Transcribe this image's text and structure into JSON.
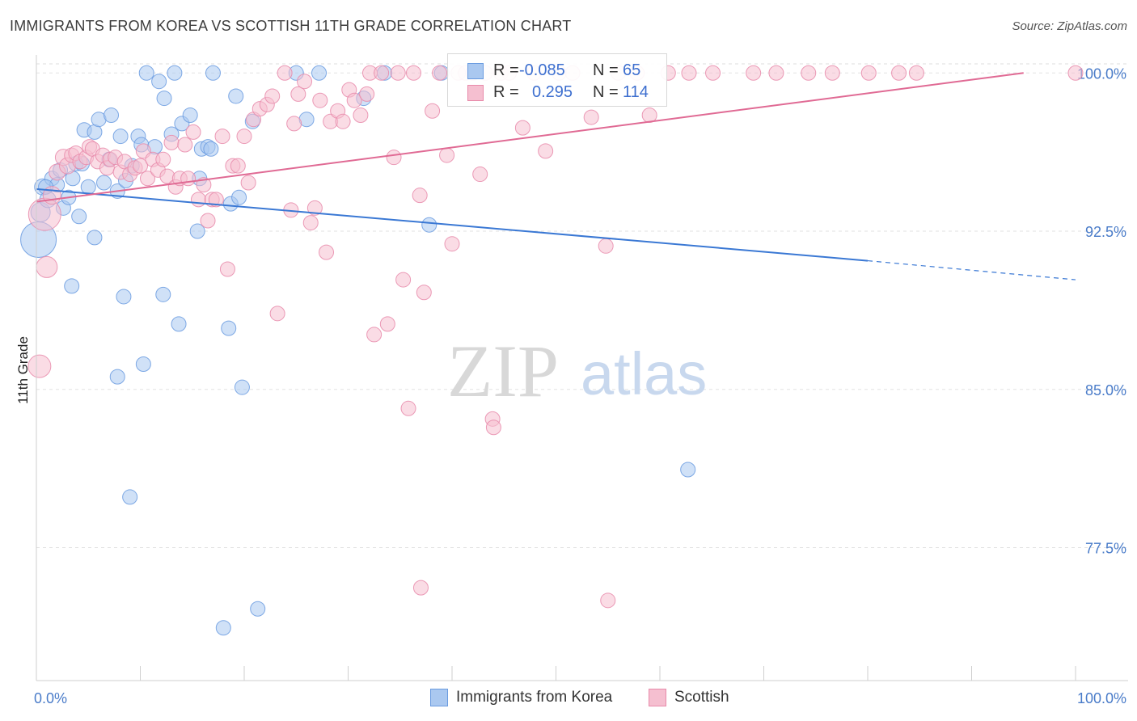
{
  "header": {
    "title": "IMMIGRANTS FROM KOREA VS SCOTTISH 11TH GRADE CORRELATION CHART",
    "source": "Source: ZipAtlas.com"
  },
  "watermark": {
    "zip": "ZIP",
    "atlas": "atlas"
  },
  "legend_top": {
    "rows": [
      {
        "r_label": "R =",
        "r_value": "-0.085",
        "n_label": "N =",
        "n_value": "65"
      },
      {
        "r_label": "R =",
        "r_value": "0.295",
        "n_label": "N =",
        "n_value": "114"
      }
    ]
  },
  "legend_bottom": [
    {
      "label": "Immigrants from Korea"
    },
    {
      "label": "Scottish"
    }
  ],
  "chart_data": {
    "type": "scatter",
    "title": "IMMIGRANTS FROM KOREA VS SCOTTISH 11TH GRADE CORRELATION CHART",
    "ylabel": "11th Grade",
    "xlabel": "",
    "xlim": [
      0,
      100
    ],
    "ylim": [
      71.2,
      100.7
    ],
    "x_tick_labels": [
      "0.0%",
      "100.0%"
    ],
    "y_ticks": [
      77.5,
      85.0,
      92.5,
      100.0
    ],
    "y_tick_labels": [
      "77.5%",
      "85.0%",
      "92.5%",
      "100.0%"
    ],
    "grid": true,
    "legend_placement": "top-center",
    "series": [
      {
        "name": "Immigrants from Korea",
        "color": "#6a9be0",
        "fill": "#aac8f0",
        "R": -0.085,
        "N": 65,
        "trend": {
          "x0": 0,
          "y0": 94.5,
          "x1": 80,
          "y1": 91.1,
          "dash_to_x": 100,
          "dash_to_y": 90.2
        },
        "points": [
          [
            0.2,
            92.1,
            22
          ],
          [
            0.4,
            93.4,
            12
          ],
          [
            0.6,
            94.6,
            10
          ],
          [
            1.1,
            94.0,
            10
          ],
          [
            1.5,
            95.0,
            9
          ],
          [
            2.0,
            94.7,
            9
          ],
          [
            2.3,
            95.4,
            9
          ],
          [
            2.6,
            93.6,
            9
          ],
          [
            3.1,
            94.1,
            9
          ],
          [
            3.5,
            95.0,
            9
          ],
          [
            3.8,
            95.7,
            9
          ],
          [
            4.1,
            93.2,
            9
          ],
          [
            4.4,
            95.7,
            9
          ],
          [
            4.6,
            97.3,
            9
          ],
          [
            5.0,
            94.6,
            9
          ],
          [
            5.6,
            97.2,
            9
          ],
          [
            6.0,
            97.8,
            9
          ],
          [
            6.5,
            94.8,
            9
          ],
          [
            7.0,
            95.9,
            9
          ],
          [
            7.2,
            98.0,
            9
          ],
          [
            7.8,
            94.4,
            9
          ],
          [
            8.1,
            97.0,
            9
          ],
          [
            8.6,
            94.9,
            9
          ],
          [
            9.2,
            95.6,
            9
          ],
          [
            9.8,
            97.0,
            9
          ],
          [
            10.1,
            96.6,
            9
          ],
          [
            10.6,
            100.0,
            9
          ],
          [
            11.4,
            96.5,
            9
          ],
          [
            11.8,
            99.6,
            9
          ],
          [
            12.3,
            98.8,
            9
          ],
          [
            13.0,
            97.1,
            9
          ],
          [
            13.3,
            100.0,
            9
          ],
          [
            14.0,
            97.6,
            9
          ],
          [
            14.8,
            98.0,
            9
          ],
          [
            15.5,
            92.5,
            9
          ],
          [
            15.7,
            95.0,
            9
          ],
          [
            15.9,
            96.4,
            9
          ],
          [
            16.5,
            96.5,
            9
          ],
          [
            16.8,
            96.4,
            9
          ],
          [
            17.0,
            100.0,
            9
          ],
          [
            18.7,
            93.8,
            9
          ],
          [
            19.2,
            98.9,
            9
          ],
          [
            19.5,
            94.1,
            9
          ],
          [
            20.8,
            97.7,
            9
          ],
          [
            25.0,
            100.0,
            9
          ],
          [
            26.0,
            97.8,
            9
          ],
          [
            27.2,
            100.0,
            9
          ],
          [
            31.5,
            98.8,
            9
          ],
          [
            33.5,
            100.0,
            9
          ],
          [
            37.8,
            92.8,
            9
          ],
          [
            39.0,
            100.0,
            9
          ],
          [
            3.4,
            89.9,
            9
          ],
          [
            5.6,
            92.2,
            9
          ],
          [
            7.8,
            85.6,
            9
          ],
          [
            8.4,
            89.4,
            9
          ],
          [
            9.0,
            79.9,
            9
          ],
          [
            10.3,
            86.2,
            9
          ],
          [
            12.2,
            89.5,
            9
          ],
          [
            13.7,
            88.1,
            9
          ],
          [
            18.5,
            87.9,
            9
          ],
          [
            19.8,
            85.1,
            9
          ],
          [
            18.0,
            73.7,
            9
          ],
          [
            21.3,
            74.6,
            9
          ],
          [
            62.7,
            81.2,
            9
          ],
          [
            0.9,
            94.6,
            9
          ]
        ]
      },
      {
        "name": "Scottish",
        "color": "#e88aaa",
        "fill": "#f5bfd0",
        "R": 0.295,
        "N": 114,
        "trend": {
          "x0": 0,
          "y0": 93.9,
          "x1": 95,
          "y1": 100.0
        },
        "points": [
          [
            0.3,
            86.1,
            14
          ],
          [
            0.8,
            93.3,
            20
          ],
          [
            1.0,
            90.8,
            13
          ],
          [
            1.5,
            94.2,
            11
          ],
          [
            2.0,
            95.3,
            10
          ],
          [
            2.6,
            96.0,
            10
          ],
          [
            3.0,
            95.6,
            10
          ],
          [
            3.4,
            96.1,
            9
          ],
          [
            3.8,
            96.2,
            9
          ],
          [
            4.2,
            95.8,
            9
          ],
          [
            4.8,
            96.0,
            9
          ],
          [
            5.1,
            96.5,
            9
          ],
          [
            5.4,
            96.4,
            9
          ],
          [
            5.9,
            95.8,
            9
          ],
          [
            6.4,
            96.1,
            9
          ],
          [
            6.8,
            95.5,
            9
          ],
          [
            7.1,
            95.9,
            9
          ],
          [
            7.6,
            96.0,
            9
          ],
          [
            8.1,
            95.3,
            9
          ],
          [
            8.5,
            95.8,
            9
          ],
          [
            9.0,
            95.2,
            9
          ],
          [
            9.5,
            95.5,
            9
          ],
          [
            10.0,
            95.6,
            9
          ],
          [
            10.3,
            96.3,
            9
          ],
          [
            10.7,
            95.0,
            9
          ],
          [
            11.2,
            95.9,
            9
          ],
          [
            11.7,
            95.4,
            9
          ],
          [
            12.2,
            95.9,
            9
          ],
          [
            12.6,
            95.1,
            9
          ],
          [
            13.0,
            96.7,
            9
          ],
          [
            13.4,
            94.6,
            9
          ],
          [
            13.8,
            95.0,
            9
          ],
          [
            14.3,
            96.6,
            9
          ],
          [
            14.6,
            95.0,
            9
          ],
          [
            15.1,
            97.2,
            9
          ],
          [
            15.6,
            94.0,
            9
          ],
          [
            16.1,
            94.7,
            9
          ],
          [
            16.5,
            93.0,
            9
          ],
          [
            16.9,
            94.0,
            9
          ],
          [
            17.3,
            94.0,
            9
          ],
          [
            17.9,
            97.0,
            9
          ],
          [
            18.4,
            90.7,
            9
          ],
          [
            18.9,
            95.6,
            9
          ],
          [
            19.4,
            95.6,
            9
          ],
          [
            20.0,
            97.0,
            9
          ],
          [
            20.4,
            94.8,
            9
          ],
          [
            20.9,
            97.8,
            9
          ],
          [
            21.5,
            98.3,
            9
          ],
          [
            22.2,
            98.5,
            9
          ],
          [
            22.7,
            98.9,
            9
          ],
          [
            23.2,
            88.6,
            9
          ],
          [
            23.9,
            100.0,
            9
          ],
          [
            24.5,
            93.5,
            9
          ],
          [
            24.8,
            97.6,
            9
          ],
          [
            25.2,
            99.0,
            9
          ],
          [
            25.8,
            99.6,
            9
          ],
          [
            26.4,
            92.9,
            9
          ],
          [
            26.8,
            93.6,
            9
          ],
          [
            27.3,
            98.7,
            9
          ],
          [
            27.9,
            91.5,
            9
          ],
          [
            28.3,
            97.7,
            9
          ],
          [
            29.0,
            98.2,
            9
          ],
          [
            29.5,
            97.7,
            9
          ],
          [
            30.1,
            99.2,
            9
          ],
          [
            30.6,
            98.7,
            9
          ],
          [
            31.2,
            98.0,
            9
          ],
          [
            31.8,
            99.0,
            9
          ],
          [
            32.1,
            100.0,
            9
          ],
          [
            32.5,
            87.6,
            9
          ],
          [
            33.2,
            100.0,
            9
          ],
          [
            33.8,
            88.1,
            9
          ],
          [
            34.4,
            96.0,
            9
          ],
          [
            34.8,
            100.0,
            9
          ],
          [
            35.3,
            90.2,
            9
          ],
          [
            35.8,
            84.1,
            9
          ],
          [
            36.3,
            100.0,
            9
          ],
          [
            36.9,
            94.2,
            9
          ],
          [
            37.3,
            89.6,
            9
          ],
          [
            38.1,
            98.2,
            9
          ],
          [
            38.8,
            100.0,
            9
          ],
          [
            39.5,
            96.1,
            9
          ],
          [
            40.0,
            91.9,
            9
          ],
          [
            40.6,
            100.0,
            9
          ],
          [
            41.3,
            100.0,
            9
          ],
          [
            42.0,
            100.0,
            9
          ],
          [
            42.7,
            95.2,
            9
          ],
          [
            43.2,
            100.0,
            9
          ],
          [
            43.9,
            83.6,
            9
          ],
          [
            44.0,
            83.2,
            9
          ],
          [
            44.7,
            100.0,
            9
          ],
          [
            45.5,
            100.0,
            9
          ],
          [
            46.8,
            97.4,
            9
          ],
          [
            47.9,
            100.0,
            9
          ],
          [
            49.0,
            96.3,
            9
          ],
          [
            50.3,
            100.0,
            9
          ],
          [
            51.6,
            100.0,
            9
          ],
          [
            53.4,
            97.9,
            9
          ],
          [
            54.8,
            91.8,
            9
          ],
          [
            55.0,
            75.0,
            9
          ],
          [
            56.0,
            100.0,
            9
          ],
          [
            57.8,
            100.0,
            9
          ],
          [
            59.0,
            98.0,
            9
          ],
          [
            60.8,
            100.0,
            9
          ],
          [
            62.8,
            100.0,
            9
          ],
          [
            65.1,
            100.0,
            9
          ],
          [
            69.0,
            100.0,
            9
          ],
          [
            71.2,
            100.0,
            9
          ],
          [
            74.3,
            100.0,
            9
          ],
          [
            76.6,
            100.0,
            9
          ],
          [
            80.1,
            100.0,
            9
          ],
          [
            83.0,
            100.0,
            9
          ],
          [
            84.7,
            100.0,
            9
          ],
          [
            100.0,
            100.0,
            9
          ],
          [
            37.0,
            75.6,
            9
          ]
        ]
      }
    ]
  }
}
